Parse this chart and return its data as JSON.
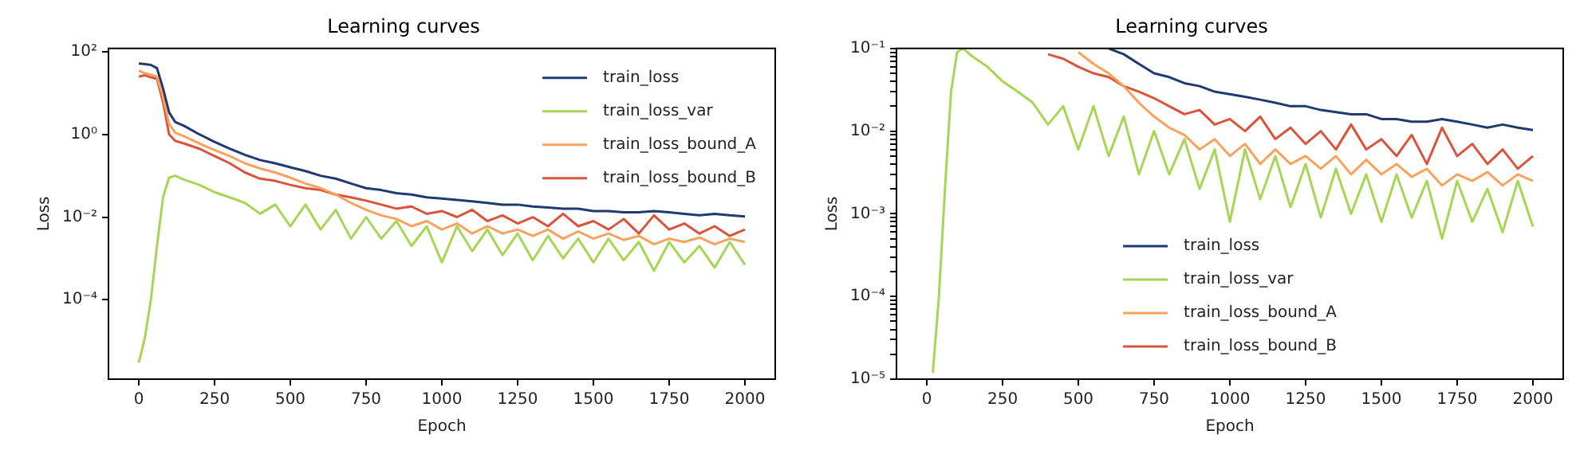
{
  "chart_data": [
    {
      "type": "line",
      "title": "Learning curves",
      "xlabel": "Epoch",
      "ylabel": "Loss",
      "log": "y",
      "legend": "top right",
      "x": [
        0,
        20,
        40,
        60,
        80,
        100,
        120,
        150,
        200,
        250,
        300,
        350,
        400,
        450,
        500,
        550,
        600,
        650,
        700,
        750,
        800,
        850,
        900,
        950,
        1000,
        1050,
        1100,
        1150,
        1200,
        1250,
        1300,
        1350,
        1400,
        1450,
        1500,
        1550,
        1600,
        1650,
        1700,
        1750,
        1800,
        1850,
        1900,
        1950,
        2000
      ],
      "xlim": [
        -100,
        2100
      ],
      "xticks": [
        0,
        250,
        500,
        750,
        1000,
        1250,
        1500,
        1750,
        2000
      ],
      "ylim": [
        1.2e-06,
        120
      ],
      "yticks": [
        {
          "value": 0.0001,
          "label": "10⁻⁴"
        },
        {
          "value": 0.01,
          "label": "10⁻²"
        },
        {
          "value": 1,
          "label": "10⁰"
        },
        {
          "value": 100,
          "label": "10²"
        }
      ],
      "series": [
        {
          "name": "train_loss",
          "color": "#1f3a70",
          "values": [
            52,
            50,
            48,
            40,
            13,
            3.4,
            2,
            1.6,
            1.0,
            0.66,
            0.45,
            0.32,
            0.24,
            0.2,
            0.16,
            0.13,
            0.1,
            0.085,
            0.065,
            0.05,
            0.045,
            0.038,
            0.035,
            0.03,
            0.028,
            0.026,
            0.024,
            0.022,
            0.02,
            0.02,
            0.018,
            0.017,
            0.016,
            0.016,
            0.014,
            0.014,
            0.013,
            0.013,
            0.014,
            0.013,
            0.012,
            0.011,
            0.012,
            0.011,
            0.0103
          ]
        },
        {
          "name": "train_loss_var",
          "color": "#a6d654",
          "values": [
            3e-06,
            1.2e-05,
            0.0001,
            0.002,
            0.03,
            0.09,
            0.1,
            0.08,
            0.06,
            0.04,
            0.03,
            0.022,
            0.012,
            0.02,
            0.006,
            0.02,
            0.005,
            0.015,
            0.003,
            0.01,
            0.003,
            0.008,
            0.002,
            0.006,
            0.0008,
            0.006,
            0.0015,
            0.005,
            0.0012,
            0.004,
            0.0009,
            0.0035,
            0.001,
            0.003,
            0.0008,
            0.003,
            0.0009,
            0.0025,
            0.0005,
            0.0025,
            0.0008,
            0.002,
            0.0006,
            0.0025,
            0.0007
          ]
        },
        {
          "name": "train_loss_bound_A",
          "color": "#f7a35c",
          "values": [
            35,
            30,
            28,
            25,
            8,
            1.8,
            1.1,
            0.9,
            0.6,
            0.42,
            0.3,
            0.2,
            0.15,
            0.12,
            0.09,
            0.065,
            0.05,
            0.035,
            0.022,
            0.015,
            0.011,
            0.009,
            0.006,
            0.008,
            0.005,
            0.007,
            0.004,
            0.006,
            0.004,
            0.005,
            0.0035,
            0.005,
            0.003,
            0.0045,
            0.003,
            0.004,
            0.0028,
            0.0035,
            0.0022,
            0.003,
            0.0025,
            0.0032,
            0.0022,
            0.003,
            0.0025
          ]
        },
        {
          "name": "train_loss_bound_B",
          "color": "#d9543a",
          "values": [
            25,
            27,
            24,
            22,
            6,
            1.0,
            0.7,
            0.6,
            0.45,
            0.3,
            0.2,
            0.12,
            0.085,
            0.075,
            0.06,
            0.05,
            0.045,
            0.035,
            0.03,
            0.025,
            0.02,
            0.016,
            0.018,
            0.012,
            0.014,
            0.01,
            0.015,
            0.008,
            0.011,
            0.007,
            0.01,
            0.006,
            0.012,
            0.006,
            0.008,
            0.005,
            0.009,
            0.004,
            0.011,
            0.005,
            0.007,
            0.004,
            0.006,
            0.0035,
            0.005
          ]
        }
      ]
    },
    {
      "type": "line",
      "title": "Learning curves",
      "xlabel": "Epoch",
      "ylabel": "Loss",
      "log": "y",
      "legend": "bottom",
      "x": [
        20,
        40,
        60,
        80,
        100,
        120,
        150,
        200,
        250,
        300,
        350,
        400,
        450,
        500,
        550,
        600,
        650,
        700,
        750,
        800,
        850,
        900,
        950,
        1000,
        1050,
        1100,
        1150,
        1200,
        1250,
        1300,
        1350,
        1400,
        1450,
        1500,
        1550,
        1600,
        1650,
        1700,
        1750,
        1800,
        1850,
        1900,
        1950,
        2000
      ],
      "xlim": [
        -100,
        2100
      ],
      "xticks": [
        0,
        250,
        500,
        750,
        1000,
        1250,
        1500,
        1750,
        2000
      ],
      "ylim": [
        1e-05,
        0.1
      ],
      "yticks": [
        {
          "value": 1e-05,
          "label": "10⁻⁵"
        },
        {
          "value": 2e-05,
          "label": null
        },
        {
          "value": 3e-05,
          "label": null
        },
        {
          "value": 4e-05,
          "label": null
        },
        {
          "value": 5e-05,
          "label": null
        },
        {
          "value": 6e-05,
          "label": null
        },
        {
          "value": 7e-05,
          "label": null
        },
        {
          "value": 8e-05,
          "label": null
        },
        {
          "value": 9e-05,
          "label": null
        },
        {
          "value": 0.0001,
          "label": "10⁻⁴"
        },
        {
          "value": 0.0002,
          "label": null
        },
        {
          "value": 0.0003,
          "label": null
        },
        {
          "value": 0.0004,
          "label": null
        },
        {
          "value": 0.0005,
          "label": null
        },
        {
          "value": 0.0006,
          "label": null
        },
        {
          "value": 0.0007,
          "label": null
        },
        {
          "value": 0.0008,
          "label": null
        },
        {
          "value": 0.0009,
          "label": null
        },
        {
          "value": 0.001,
          "label": "10⁻³"
        },
        {
          "value": 0.002,
          "label": null
        },
        {
          "value": 0.003,
          "label": null
        },
        {
          "value": 0.004,
          "label": null
        },
        {
          "value": 0.005,
          "label": null
        },
        {
          "value": 0.006,
          "label": null
        },
        {
          "value": 0.007,
          "label": null
        },
        {
          "value": 0.008,
          "label": null
        },
        {
          "value": 0.009,
          "label": null
        },
        {
          "value": 0.01,
          "label": "10⁻²"
        },
        {
          "value": 0.02,
          "label": null
        },
        {
          "value": 0.03,
          "label": null
        },
        {
          "value": 0.04,
          "label": null
        },
        {
          "value": 0.05,
          "label": null
        },
        {
          "value": 0.06,
          "label": null
        },
        {
          "value": 0.07,
          "label": null
        },
        {
          "value": 0.08,
          "label": null
        },
        {
          "value": 0.09,
          "label": null
        },
        {
          "value": 0.1,
          "label": "10⁻¹"
        }
      ],
      "series": [
        {
          "name": "train_loss",
          "color": "#1f3a70",
          "values": [
            null,
            null,
            null,
            null,
            null,
            null,
            null,
            null,
            null,
            null,
            null,
            null,
            null,
            null,
            null,
            0.1,
            0.085,
            0.065,
            0.05,
            0.045,
            0.038,
            0.035,
            0.03,
            0.028,
            0.026,
            0.024,
            0.022,
            0.02,
            0.02,
            0.018,
            0.017,
            0.016,
            0.016,
            0.014,
            0.014,
            0.013,
            0.013,
            0.014,
            0.013,
            0.012,
            0.011,
            0.012,
            0.011,
            0.0103
          ]
        },
        {
          "name": "train_loss_var",
          "color": "#a6d654",
          "values": [
            1.2e-05,
            0.0001,
            0.002,
            0.03,
            0.09,
            0.1,
            0.08,
            0.06,
            0.04,
            0.03,
            0.022,
            0.012,
            0.02,
            0.006,
            0.02,
            0.005,
            0.015,
            0.003,
            0.01,
            0.003,
            0.008,
            0.002,
            0.006,
            0.0008,
            0.006,
            0.0015,
            0.005,
            0.0012,
            0.004,
            0.0009,
            0.0035,
            0.001,
            0.003,
            0.0008,
            0.003,
            0.0009,
            0.0025,
            0.0005,
            0.0025,
            0.0008,
            0.002,
            0.0006,
            0.0025,
            0.0007
          ]
        },
        {
          "name": "train_loss_bound_A",
          "color": "#f7a35c",
          "values": [
            null,
            null,
            null,
            null,
            null,
            null,
            null,
            null,
            null,
            null,
            null,
            null,
            null,
            0.09,
            0.065,
            0.05,
            0.035,
            0.022,
            0.015,
            0.011,
            0.009,
            0.006,
            0.008,
            0.005,
            0.007,
            0.004,
            0.006,
            0.004,
            0.005,
            0.0035,
            0.005,
            0.003,
            0.0045,
            0.003,
            0.004,
            0.0028,
            0.0035,
            0.0022,
            0.003,
            0.0025,
            0.0032,
            0.0022,
            0.003,
            0.0025
          ]
        },
        {
          "name": "train_loss_bound_B",
          "color": "#d9543a",
          "values": [
            null,
            null,
            null,
            null,
            null,
            null,
            null,
            null,
            null,
            null,
            null,
            0.085,
            0.075,
            0.06,
            0.05,
            0.045,
            0.035,
            0.03,
            0.025,
            0.02,
            0.016,
            0.018,
            0.012,
            0.014,
            0.01,
            0.015,
            0.008,
            0.011,
            0.007,
            0.01,
            0.006,
            0.012,
            0.006,
            0.008,
            0.005,
            0.009,
            0.004,
            0.011,
            0.005,
            0.007,
            0.004,
            0.006,
            0.0035,
            0.005
          ]
        }
      ]
    }
  ]
}
